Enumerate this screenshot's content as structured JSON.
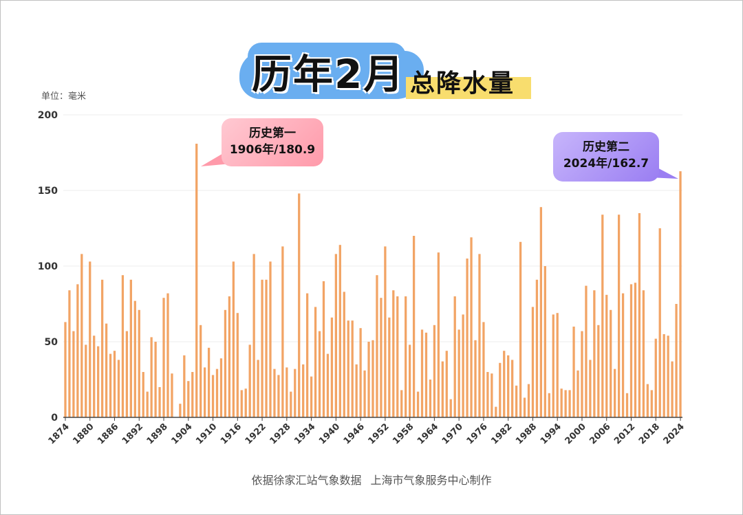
{
  "title": {
    "main": "历年2月",
    "sub": "总降水量"
  },
  "unit_label": "单位：毫米",
  "footer": "依据徐家汇站气象数据 上海市气象服务中心制作",
  "colors": {
    "bar": "#f2a465",
    "grid": "#ececec",
    "axis": "#444444",
    "title_blob": "#6aaef0",
    "title_highlight": "#f8dd6e",
    "callout_1": "#ff9aaa",
    "callout_2": "#9a7ef2"
  },
  "annotations": [
    {
      "line1": "历史第一",
      "line2": "1906年/180.9"
    },
    {
      "line1": "历史第二",
      "line2": "2024年/162.7"
    }
  ],
  "chart_data": {
    "type": "bar",
    "title": "历年2月总降水量",
    "ylabel": "单位：毫米",
    "ylim": [
      0,
      200
    ],
    "yticks": [
      0,
      50,
      100,
      150,
      200
    ],
    "xticks": [
      1874,
      1880,
      1886,
      1892,
      1898,
      1904,
      1910,
      1916,
      1922,
      1928,
      1934,
      1940,
      1946,
      1952,
      1958,
      1964,
      1970,
      1976,
      1982,
      1988,
      1994,
      2000,
      2006,
      2012,
      2018,
      2024
    ],
    "x_start": 1874,
    "x_end": 2024,
    "grid": true,
    "values": [
      63,
      84,
      57,
      88,
      108,
      48,
      103,
      54,
      47,
      91,
      62,
      42,
      44,
      38,
      94,
      57,
      91,
      77,
      71,
      30,
      17,
      53,
      50,
      20,
      79,
      82,
      29,
      0,
      9,
      41,
      24,
      30,
      180.9,
      61,
      33,
      46,
      28,
      32,
      39,
      71,
      80,
      103,
      69,
      18,
      19,
      48,
      108,
      38,
      91,
      91,
      103,
      32,
      28,
      113,
      33,
      17,
      32,
      148,
      35,
      82,
      27,
      73,
      57,
      90,
      42,
      66,
      108,
      114,
      83,
      64,
      64,
      35,
      59,
      31,
      50,
      51,
      94,
      79,
      113,
      66,
      84,
      80,
      18,
      80,
      48,
      120,
      17,
      58,
      56,
      25,
      61,
      109,
      37,
      44,
      12,
      80,
      58,
      68,
      105,
      119,
      51,
      108,
      63,
      30,
      29,
      7,
      36,
      44,
      41,
      38,
      21,
      116,
      13,
      22,
      73,
      91,
      139,
      100,
      16,
      68,
      69,
      19,
      18,
      18,
      60,
      31,
      57,
      87,
      38,
      84,
      61,
      134,
      81,
      71,
      32,
      134,
      82,
      16,
      88,
      89,
      135,
      84,
      22,
      18,
      52,
      125,
      55,
      54,
      37,
      75,
      162.7
    ]
  }
}
